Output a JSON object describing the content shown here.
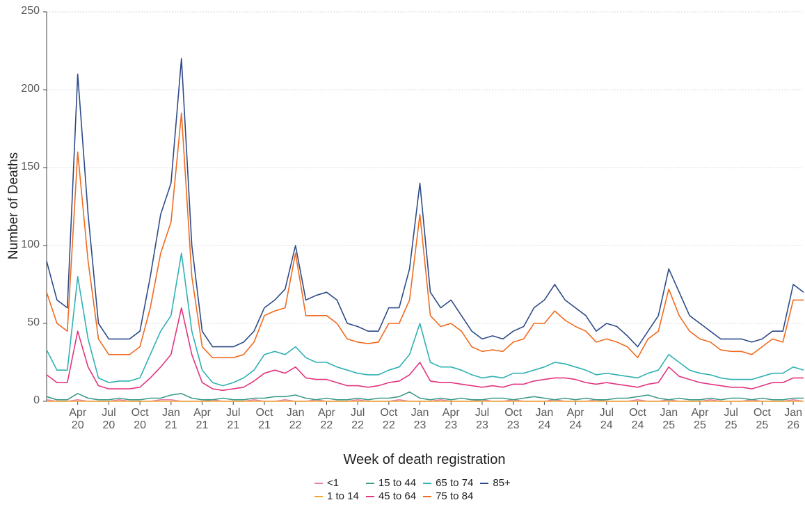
{
  "chart_data": {
    "type": "line",
    "y_label": "Number of Deaths",
    "x_label": "Week of death registration",
    "categories": [
      null,
      null,
      null,
      "Apr 20",
      null,
      null,
      "Jul 20",
      null,
      null,
      "Oct 20",
      null,
      null,
      "Jan 21",
      null,
      null,
      "Apr 21",
      null,
      null,
      "Jul 21",
      null,
      null,
      "Oct 21",
      null,
      null,
      "Jan 22",
      null,
      null,
      "Apr 22",
      null,
      null,
      "Jul 22",
      null,
      null,
      "Oct 22",
      null,
      null,
      "Jan 23",
      null,
      null,
      "Apr 23",
      null,
      null,
      "Jul 23",
      null,
      null,
      "Oct 23",
      null,
      null,
      "Jan 24",
      null,
      null,
      "Apr 24",
      null,
      null,
      "Jul 24",
      null,
      null,
      "Oct 24",
      null,
      null,
      "Jan 25",
      null,
      null,
      "Apr 25",
      null,
      null,
      "Jul 25",
      null,
      null,
      "Oct 25",
      null,
      null,
      "Jan 26",
      null
    ],
    "series": [
      {
        "name": "<1",
        "color": "#e77fab",
        "values": [
          1,
          0,
          0,
          1,
          0,
          0,
          0,
          1,
          0,
          0,
          0,
          1,
          1,
          0,
          0,
          0,
          1,
          0,
          0,
          0,
          1,
          0,
          0,
          1,
          0,
          0,
          1,
          0,
          0,
          0,
          1,
          0,
          0,
          0,
          1,
          0,
          0,
          0,
          1,
          0,
          0,
          0,
          1,
          0,
          0,
          1,
          0,
          0,
          0,
          1,
          0,
          0,
          0,
          1,
          0,
          0,
          0,
          1,
          0,
          0,
          1,
          0,
          0,
          0,
          1,
          0,
          0,
          0,
          1,
          0,
          0,
          0,
          1,
          0
        ]
      },
      {
        "name": "1 to 14",
        "color": "#f0a830",
        "values": [
          0,
          0,
          0,
          0,
          0,
          0,
          0,
          0,
          0,
          0,
          0,
          0,
          0,
          0,
          0,
          0,
          0,
          0,
          0,
          0,
          0,
          0,
          0,
          0,
          0,
          0,
          0,
          0,
          0,
          0,
          0,
          0,
          0,
          0,
          0,
          0,
          0,
          0,
          0,
          0,
          0,
          0,
          0,
          0,
          0,
          0,
          0,
          0,
          0,
          0,
          0,
          0,
          0,
          0,
          0,
          0,
          0,
          0,
          0,
          0,
          0,
          0,
          0,
          0,
          0,
          0,
          0,
          0,
          0,
          0,
          0,
          0,
          0,
          0
        ]
      },
      {
        "name": "15 to 44",
        "color": "#3d9a8b",
        "values": [
          3,
          1,
          1,
          5,
          2,
          1,
          1,
          2,
          1,
          1,
          2,
          2,
          4,
          5,
          2,
          1,
          1,
          2,
          1,
          1,
          2,
          2,
          3,
          3,
          4,
          2,
          1,
          2,
          1,
          1,
          2,
          1,
          2,
          2,
          3,
          6,
          2,
          1,
          2,
          1,
          2,
          1,
          1,
          2,
          2,
          1,
          2,
          3,
          2,
          1,
          2,
          1,
          2,
          1,
          1,
          2,
          2,
          3,
          4,
          2,
          1,
          2,
          1,
          1,
          2,
          1,
          2,
          2,
          1,
          2,
          1,
          1,
          2,
          2
        ]
      },
      {
        "name": "45 to 64",
        "color": "#e2347f",
        "values": [
          17,
          12,
          12,
          45,
          22,
          10,
          8,
          8,
          8,
          9,
          15,
          22,
          30,
          60,
          30,
          12,
          8,
          7,
          8,
          9,
          13,
          18,
          20,
          18,
          22,
          15,
          14,
          14,
          12,
          10,
          10,
          9,
          10,
          12,
          13,
          17,
          25,
          13,
          12,
          12,
          11,
          10,
          9,
          10,
          9,
          11,
          11,
          13,
          14,
          15,
          15,
          14,
          12,
          11,
          12,
          11,
          10,
          9,
          11,
          12,
          22,
          16,
          14,
          12,
          11,
          10,
          9,
          9,
          8,
          10,
          12,
          12,
          15,
          15
        ]
      },
      {
        "name": "65 to 74",
        "color": "#2fb0b3",
        "values": [
          33,
          20,
          20,
          80,
          40,
          15,
          12,
          13,
          13,
          15,
          30,
          45,
          55,
          95,
          45,
          20,
          12,
          10,
          12,
          15,
          20,
          30,
          32,
          30,
          35,
          28,
          25,
          25,
          22,
          20,
          18,
          17,
          17,
          20,
          22,
          30,
          50,
          25,
          22,
          22,
          20,
          17,
          15,
          16,
          15,
          18,
          18,
          20,
          22,
          25,
          24,
          22,
          20,
          17,
          18,
          17,
          16,
          15,
          18,
          20,
          30,
          25,
          20,
          18,
          17,
          15,
          14,
          14,
          14,
          16,
          18,
          18,
          22,
          20
        ]
      },
      {
        "name": "75 to 84",
        "color": "#f06a1e",
        "values": [
          70,
          50,
          45,
          160,
          90,
          40,
          30,
          30,
          30,
          35,
          60,
          95,
          115,
          185,
          80,
          35,
          28,
          28,
          28,
          30,
          38,
          55,
          58,
          60,
          95,
          55,
          55,
          55,
          50,
          40,
          38,
          37,
          38,
          50,
          50,
          65,
          120,
          55,
          48,
          50,
          45,
          35,
          32,
          33,
          32,
          38,
          40,
          50,
          50,
          58,
          52,
          48,
          45,
          38,
          40,
          38,
          35,
          28,
          40,
          45,
          72,
          55,
          45,
          40,
          38,
          33,
          32,
          32,
          30,
          35,
          40,
          38,
          65,
          65
        ]
      },
      {
        "name": "85+",
        "color": "#2d4a88",
        "values": [
          90,
          65,
          60,
          210,
          120,
          50,
          40,
          40,
          40,
          45,
          80,
          120,
          140,
          220,
          100,
          45,
          35,
          35,
          35,
          38,
          45,
          60,
          65,
          72,
          100,
          65,
          68,
          70,
          65,
          50,
          48,
          45,
          45,
          60,
          60,
          85,
          140,
          70,
          60,
          65,
          55,
          45,
          40,
          42,
          40,
          45,
          48,
          60,
          65,
          75,
          65,
          60,
          55,
          45,
          50,
          48,
          42,
          35,
          45,
          55,
          85,
          70,
          55,
          50,
          45,
          40,
          40,
          40,
          38,
          40,
          45,
          45,
          75,
          70
        ]
      }
    ],
    "ylim": [
      0,
      250
    ],
    "yticks": [
      0,
      50,
      100,
      150,
      200,
      250
    ],
    "grid": true
  }
}
